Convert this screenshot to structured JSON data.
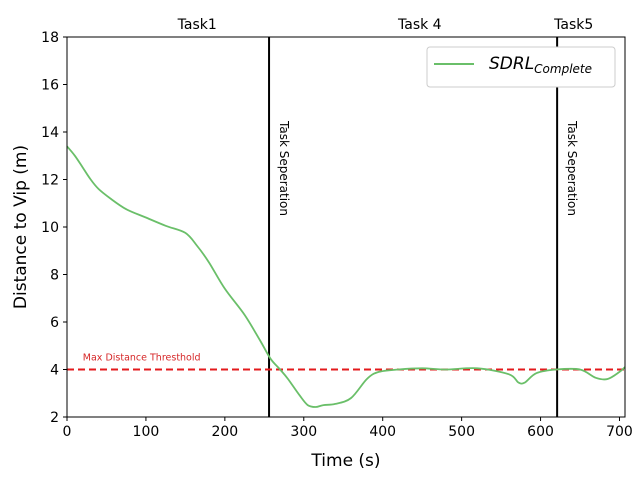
{
  "chart_data": {
    "type": "line",
    "xlabel": "Time (s)",
    "ylabel": "Distance to Vip (m)",
    "xlim": [
      0,
      707
    ],
    "ylim": [
      2,
      18
    ],
    "xticks": [
      0,
      100,
      200,
      300,
      400,
      500,
      600,
      700
    ],
    "yticks": [
      2,
      4,
      6,
      8,
      10,
      12,
      14,
      16,
      18
    ],
    "grid": false,
    "legend": {
      "placement": "top-right",
      "label_main": "SDRL",
      "label_sub": "Complete"
    },
    "series": [
      {
        "name": "SDRL_Complete",
        "color": "#6abf69",
        "x": [
          0,
          10,
          20,
          30,
          40,
          55,
          75,
          100,
          125,
          150,
          165,
          180,
          200,
          225,
          245,
          258,
          270,
          280,
          295,
          305,
          315,
          325,
          340,
          360,
          380,
          395,
          420,
          450,
          480,
          520,
          560,
          572,
          580,
          595,
          620,
          650,
          670,
          685,
          700,
          707
        ],
        "values": [
          13.4,
          13.0,
          12.5,
          12.0,
          11.6,
          11.2,
          10.75,
          10.4,
          10.05,
          9.75,
          9.2,
          8.5,
          7.4,
          6.3,
          5.2,
          4.45,
          4.0,
          3.6,
          2.9,
          2.5,
          2.42,
          2.5,
          2.55,
          2.8,
          3.6,
          3.9,
          4.0,
          4.05,
          4.0,
          4.05,
          3.8,
          3.45,
          3.45,
          3.85,
          4.0,
          4.0,
          3.65,
          3.6,
          3.9,
          4.1
        ]
      }
    ],
    "threshold": {
      "value": 4,
      "label": "Max Distance Thresthold",
      "color": "#e31a1c"
    },
    "separators": [
      {
        "x": 256,
        "label": "Task Seperation"
      },
      {
        "x": 621,
        "label": "Task Seperation"
      }
    ],
    "task_labels": [
      {
        "x": 165,
        "label": "Task1"
      },
      {
        "x": 447,
        "label": "Task 4"
      },
      {
        "x": 642,
        "label": "Task5"
      }
    ]
  }
}
